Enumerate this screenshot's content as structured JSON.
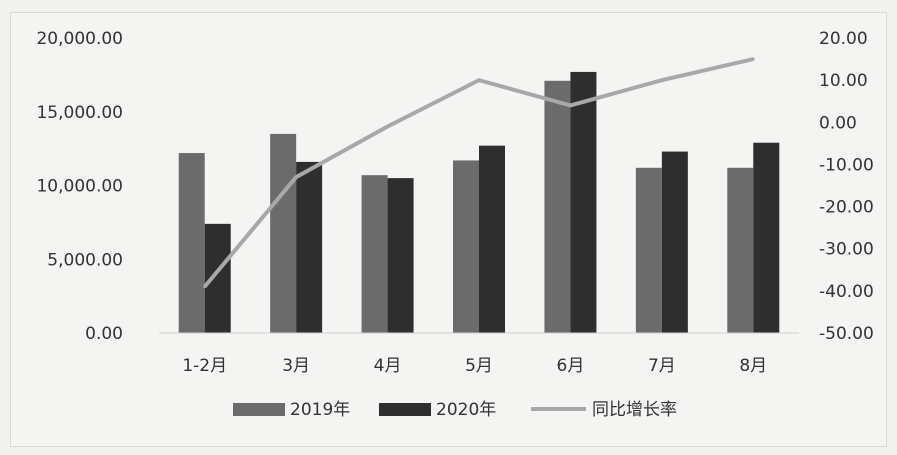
{
  "chart_data": {
    "type": "bar",
    "categories": [
      "1-2月",
      "3月",
      "4月",
      "5月",
      "6月",
      "7月",
      "8月"
    ],
    "series": [
      {
        "name": "2019年",
        "type": "bar",
        "axis": "left",
        "values": [
          12200,
          13500,
          10700,
          11700,
          17100,
          11200,
          11200
        ]
      },
      {
        "name": "2020年",
        "type": "bar",
        "axis": "left",
        "values": [
          7400,
          11600,
          10500,
          12700,
          17700,
          12300,
          12900
        ]
      },
      {
        "name": "同比增长率",
        "type": "line",
        "axis": "right",
        "values": [
          -39,
          -13,
          -1,
          10,
          4,
          10,
          15
        ]
      }
    ],
    "ylim_left": [
      0,
      20000
    ],
    "ylim_right": [
      -50,
      20
    ],
    "yticks_left": [
      "0.00",
      "5,000.00",
      "10,000.00",
      "15,000.00",
      "20,000.00"
    ],
    "yticks_right": [
      "-50.00",
      "-40.00",
      "-30.00",
      "-20.00",
      "-10.00",
      "0.00",
      "10.00",
      "20.00"
    ],
    "legend_position": "bottom",
    "grid": false,
    "colors": {
      "2019年": "#6b6b6b",
      "2020年": "#2e2e2e",
      "同比增长率": "#a8a8a8"
    }
  }
}
